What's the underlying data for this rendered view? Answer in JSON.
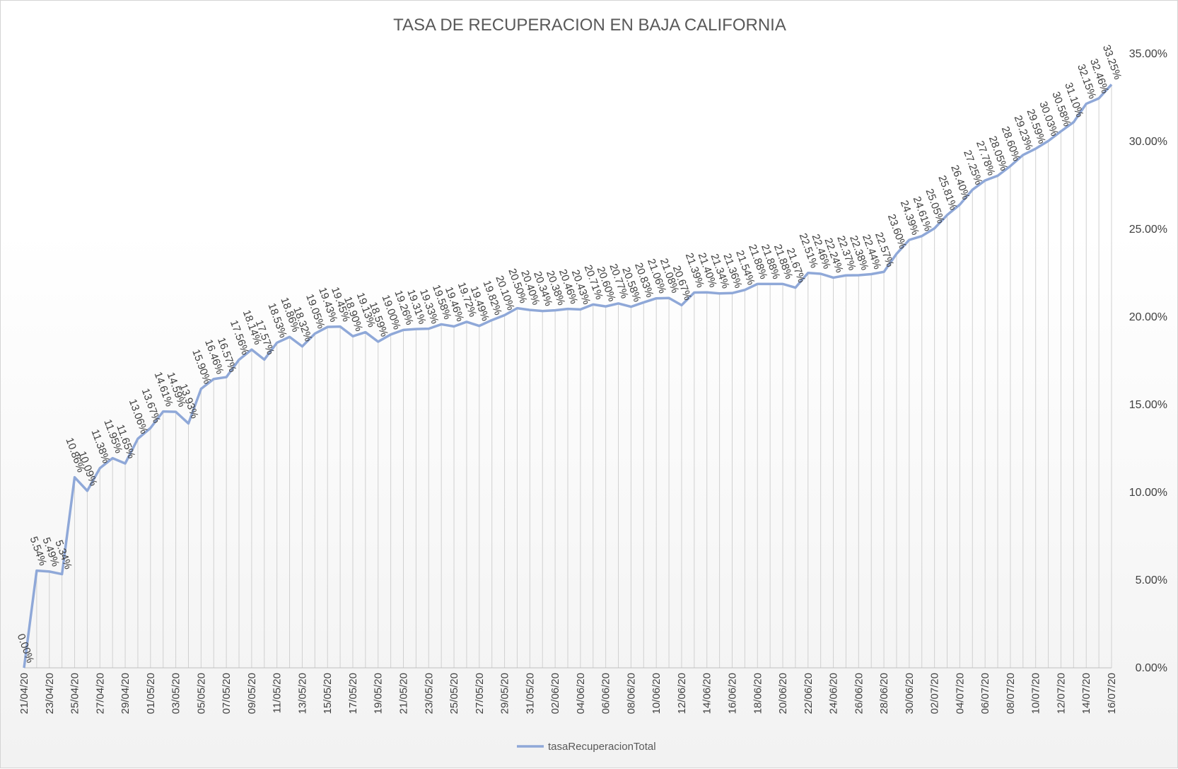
{
  "chart_data": {
    "type": "line",
    "title": "TASA DE RECUPERACION  EN BAJA CALIFORNIA",
    "xlabel": "",
    "ylabel": "",
    "ylim": [
      0,
      35
    ],
    "yticks": [
      "0.00%",
      "5.00%",
      "10.00%",
      "15.00%",
      "20.00%",
      "25.00%",
      "30.00%",
      "35.00%"
    ],
    "grid": "vertical drop lines",
    "legend_position": "bottom",
    "line_color": "#8fa8d8",
    "x": [
      "21/04/20",
      "22/04/20",
      "23/04/20",
      "24/04/20",
      "25/04/20",
      "26/04/20",
      "27/04/20",
      "28/04/20",
      "29/04/20",
      "30/04/20",
      "01/05/20",
      "02/05/20",
      "03/05/20",
      "04/05/20",
      "05/05/20",
      "06/05/20",
      "07/05/20",
      "08/05/20",
      "09/05/20",
      "10/05/20",
      "11/05/20",
      "12/05/20",
      "13/05/20",
      "14/05/20",
      "15/05/20",
      "16/05/20",
      "17/05/20",
      "18/05/20",
      "19/05/20",
      "20/05/20",
      "21/05/20",
      "22/05/20",
      "23/05/20",
      "24/05/20",
      "25/05/20",
      "26/05/20",
      "27/05/20",
      "28/05/20",
      "29/05/20",
      "30/05/20",
      "31/05/20",
      "01/06/20",
      "02/06/20",
      "03/06/20",
      "04/06/20",
      "05/06/20",
      "06/06/20",
      "07/06/20",
      "08/06/20",
      "09/06/20",
      "10/06/20",
      "11/06/20",
      "12/06/20",
      "13/06/20",
      "14/06/20",
      "15/06/20",
      "16/06/20",
      "17/06/20",
      "18/06/20",
      "19/06/20",
      "20/06/20",
      "21/06/20",
      "22/06/20",
      "23/06/20",
      "24/06/20",
      "25/06/20",
      "26/06/20",
      "27/06/20",
      "28/06/20",
      "29/06/20",
      "30/06/20",
      "01/07/20",
      "02/07/20",
      "03/07/20",
      "04/07/20",
      "05/07/20",
      "06/07/20",
      "07/07/20",
      "08/07/20",
      "09/07/20",
      "10/07/20",
      "11/07/20",
      "12/07/20",
      "13/07/20",
      "14/07/20",
      "15/07/20",
      "16/07/20"
    ],
    "series": [
      {
        "name": "tasaRecuperacionTotal",
        "values": [
          0.0,
          5.54,
          5.49,
          5.34,
          10.86,
          10.09,
          11.38,
          11.95,
          11.65,
          13.06,
          13.67,
          14.61,
          14.59,
          13.93,
          15.9,
          16.46,
          16.57,
          17.56,
          18.14,
          17.57,
          18.53,
          18.86,
          18.32,
          19.05,
          19.43,
          19.45,
          18.9,
          19.13,
          18.59,
          19.0,
          19.26,
          19.31,
          19.33,
          19.58,
          19.46,
          19.72,
          19.49,
          19.82,
          20.1,
          20.5,
          20.4,
          20.34,
          20.38,
          20.46,
          20.43,
          20.71,
          20.6,
          20.77,
          20.58,
          20.83,
          21.06,
          21.08,
          20.67,
          21.39,
          21.4,
          21.34,
          21.36,
          21.54,
          21.88,
          21.88,
          21.88,
          21.67,
          22.51,
          22.46,
          22.24,
          22.37,
          22.38,
          22.44,
          22.57,
          23.6,
          24.39,
          24.61,
          25.05,
          25.81,
          26.4,
          27.25,
          27.78,
          28.05,
          28.6,
          29.23,
          29.59,
          30.03,
          30.58,
          31.1,
          32.15,
          32.46,
          33.25
        ],
        "labels": [
          "0.00%",
          "5.54%",
          "5.49%",
          "5.34%",
          "10.86%",
          "10.09%",
          "11.38%",
          "11.95%",
          "11.65%",
          "13.06%",
          "13.67%",
          "14.61%",
          "14.59%",
          "13.93%",
          "15.90%",
          "16.46%",
          "16.57%",
          "17.56%",
          "18.14%",
          "17.57%",
          "18.53%",
          "18.86%",
          "18.32%",
          "19.05%",
          "19.43%",
          "19.45%",
          "18.90%",
          "19.13%",
          "18.59%",
          "19.00%",
          "19.26%",
          "19.31%",
          "19.33%",
          "19.58%",
          "19.46%",
          "19.72%",
          "19.49%",
          "19.82%",
          "20.10%",
          "20.50%",
          "20.40%",
          "20.34%",
          "20.38%",
          "20.46%",
          "20.43%",
          "20.71%",
          "20.60%",
          "20.77%",
          "20.58%",
          "20.83%",
          "21.06%",
          "21.08%",
          "20.67%",
          "21.39%",
          "21.40%",
          "21.34%",
          "21.36%",
          "21.54%",
          "21.88%",
          "21.88%",
          "21.88%",
          "21.67%",
          "22.51%",
          "22.46%",
          "22.24%",
          "22.37%",
          "22.38%",
          "22.44%",
          "22.57%",
          "23.60%",
          "24.39%",
          "24.61%",
          "25.05%",
          "25.81%",
          "26.40%",
          "27.25%",
          "27.78%",
          "28.05%",
          "28.60%",
          "29.23%",
          "29.59%",
          "30.03%",
          "30.58%",
          "31.10%",
          "32.15%",
          "32.46%",
          "33.25%"
        ]
      }
    ],
    "x_tick_labels": [
      "21/04/20",
      "23/04/20",
      "25/04/20",
      "27/04/20",
      "29/04/20",
      "01/05/20",
      "03/05/20",
      "05/05/20",
      "07/05/20",
      "09/05/20",
      "11/05/20",
      "13/05/20",
      "15/05/20",
      "17/05/20",
      "19/05/20",
      "21/05/20",
      "23/05/20",
      "25/05/20",
      "27/05/20",
      "29/05/20",
      "31/05/20",
      "02/06/20",
      "04/06/20",
      "06/06/20",
      "08/06/20",
      "10/06/20",
      "12/06/20",
      "14/06/20",
      "16/06/20",
      "18/06/20",
      "20/06/20",
      "22/06/20",
      "24/06/20",
      "26/06/20",
      "28/06/20",
      "30/06/20",
      "02/07/20",
      "04/07/20",
      "06/07/20",
      "08/07/20",
      "10/07/20",
      "12/07/20",
      "14/07/20",
      "16/07/20"
    ]
  }
}
